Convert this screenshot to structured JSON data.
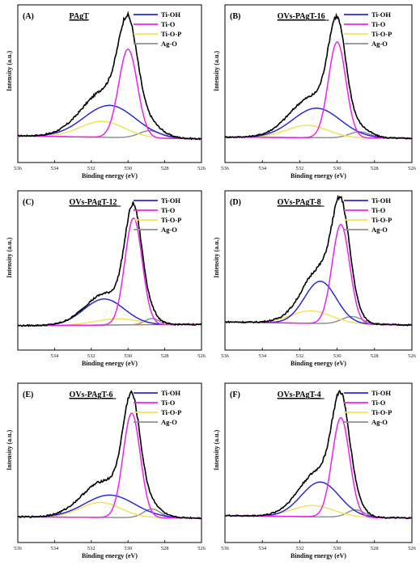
{
  "colors": {
    "envelope": "#000000",
    "Ti-OH": "#2a2ad8",
    "Ti-O": "#ee22ee",
    "Ti-O-P": "#f2e25a",
    "Ag-O": "#909090",
    "baseline_C": "#e24a1a"
  },
  "chart_data": [
    {
      "type": "line",
      "letter": "(A)",
      "title": "PAgT",
      "xlabel": "Binding energy (eV)",
      "ylabel": "Intensity (a.u.)",
      "xlim": [
        536,
        526
      ],
      "xticks": [
        536,
        534,
        532,
        530,
        528,
        526
      ],
      "ylim": [
        0,
        1
      ],
      "legend": [
        "Ti-OH",
        "Ti-O",
        "Ti-O-P",
        "Ag-O"
      ],
      "peaks": [
        {
          "name": "Ti-OH",
          "center": 531.0,
          "fwhm": 3.3,
          "height": 0.26
        },
        {
          "name": "Ti-O",
          "center": 530.0,
          "fwhm": 1.2,
          "height": 0.72
        },
        {
          "name": "Ti-O-P",
          "center": 531.4,
          "fwhm": 2.8,
          "height": 0.13
        },
        {
          "name": "Ag-O",
          "center": 528.8,
          "fwhm": 1.4,
          "height": 0.06
        }
      ],
      "baseline": [
        0.05,
        0.025
      ]
    },
    {
      "type": "line",
      "letter": "(B)",
      "title": "OVs-PAgT-16",
      "xlabel": "Binding energy (eV)",
      "ylabel": "Intensity (a.u.)",
      "xlim": [
        536,
        526
      ],
      "xticks": [
        536,
        534,
        532,
        530,
        528,
        526
      ],
      "ylim": [
        0,
        1
      ],
      "legend": [
        "Ti-OH",
        "Ti-O",
        "Ti-O-P",
        "Ag-O"
      ],
      "peaks": [
        {
          "name": "Ti-OH",
          "center": 531.1,
          "fwhm": 3.0,
          "height": 0.24
        },
        {
          "name": "Ti-O",
          "center": 530.0,
          "fwhm": 1.1,
          "height": 0.78
        },
        {
          "name": "Ti-O-P",
          "center": 531.6,
          "fwhm": 2.6,
          "height": 0.1
        },
        {
          "name": "Ag-O",
          "center": 528.8,
          "fwhm": 1.3,
          "height": 0.05
        }
      ],
      "baseline": [
        0.04,
        0.03
      ]
    },
    {
      "type": "line",
      "letter": "(C)",
      "title": "OVs-PAgT-12",
      "xlabel": "Binding energy (eV)",
      "ylabel": "Intensity (a.u.)",
      "xlim": [
        536,
        526
      ],
      "xticks": [
        534,
        532,
        530,
        528,
        526
      ],
      "ylim": [
        0,
        1
      ],
      "legend": [
        "Ti-OH",
        "Ti-O",
        "Ti-O-P",
        "Ag-O"
      ],
      "peaks": [
        {
          "name": "Ti-OH",
          "center": 531.3,
          "fwhm": 2.6,
          "height": 0.21
        },
        {
          "name": "Ti-O",
          "center": 529.7,
          "fwhm": 1.1,
          "height": 0.86
        },
        {
          "name": "Ti-O-P",
          "center": 530.6,
          "fwhm": 2.8,
          "height": 0.05
        },
        {
          "name": "Ag-O",
          "center": 528.7,
          "fwhm": 0.9,
          "height": 0.05
        }
      ],
      "baseline": [
        0.03,
        0.04
      ],
      "show_baseline": true
    },
    {
      "type": "line",
      "letter": "(D)",
      "title": "OVs-PAgT-8",
      "xlabel": "Binding energy (eV)",
      "ylabel": "Intensity (a.u.)",
      "xlim": [
        536,
        526
      ],
      "xticks": [
        536,
        534,
        532,
        530,
        528,
        526
      ],
      "ylim": [
        0,
        1
      ],
      "legend": [
        "Ti-OH",
        "Ti-O",
        "Ti-O-P",
        "Ag-O"
      ],
      "peaks": [
        {
          "name": "Ti-OH",
          "center": 530.9,
          "fwhm": 2.0,
          "height": 0.34
        },
        {
          "name": "Ti-O",
          "center": 529.8,
          "fwhm": 1.1,
          "height": 0.8
        },
        {
          "name": "Ti-O-P",
          "center": 531.4,
          "fwhm": 2.6,
          "height": 0.1
        },
        {
          "name": "Ag-O",
          "center": 529.2,
          "fwhm": 1.3,
          "height": 0.06
        }
      ],
      "baseline": [
        0.06,
        0.035
      ]
    },
    {
      "type": "line",
      "letter": "(E)",
      "title": "OVs-PAgT-6",
      "xlabel": "Binding energy (eV)",
      "ylabel": "Intensity (a.u.)",
      "xlim": [
        536,
        526
      ],
      "xticks": [
        536,
        534,
        532,
        530,
        528,
        526
      ],
      "ylim": [
        0,
        1
      ],
      "legend": [
        "Ti-OH",
        "Ti-O",
        "Ti-O-P",
        "Ag-O"
      ],
      "peaks": [
        {
          "name": "Ti-OH",
          "center": 531.0,
          "fwhm": 3.2,
          "height": 0.18
        },
        {
          "name": "Ti-O",
          "center": 529.8,
          "fwhm": 1.1,
          "height": 0.84
        },
        {
          "name": "Ti-O-P",
          "center": 531.5,
          "fwhm": 2.6,
          "height": 0.12
        },
        {
          "name": "Ag-O",
          "center": 528.7,
          "fwhm": 1.1,
          "height": 0.07
        }
      ],
      "baseline": [
        0.04,
        0.03
      ]
    },
    {
      "type": "line",
      "letter": "(F)",
      "title": "OVs-PAgT-4",
      "xlabel": "Binding energy (eV)",
      "ylabel": "Intensity (a.u.)",
      "xlim": [
        536,
        526
      ],
      "xticks": [
        536,
        534,
        532,
        530,
        528,
        526
      ],
      "ylim": [
        0,
        1
      ],
      "legend": [
        "Ti-OH",
        "Ti-O",
        "Ti-O-P",
        "Ag-O"
      ],
      "peaks": [
        {
          "name": "Ti-OH",
          "center": 530.9,
          "fwhm": 2.4,
          "height": 0.28
        },
        {
          "name": "Ti-O",
          "center": 529.8,
          "fwhm": 1.1,
          "height": 0.8
        },
        {
          "name": "Ti-O-P",
          "center": 531.3,
          "fwhm": 2.6,
          "height": 0.09
        },
        {
          "name": "Ag-O",
          "center": 529.0,
          "fwhm": 1.1,
          "height": 0.06
        }
      ],
      "baseline": [
        0.05,
        0.03
      ]
    }
  ]
}
